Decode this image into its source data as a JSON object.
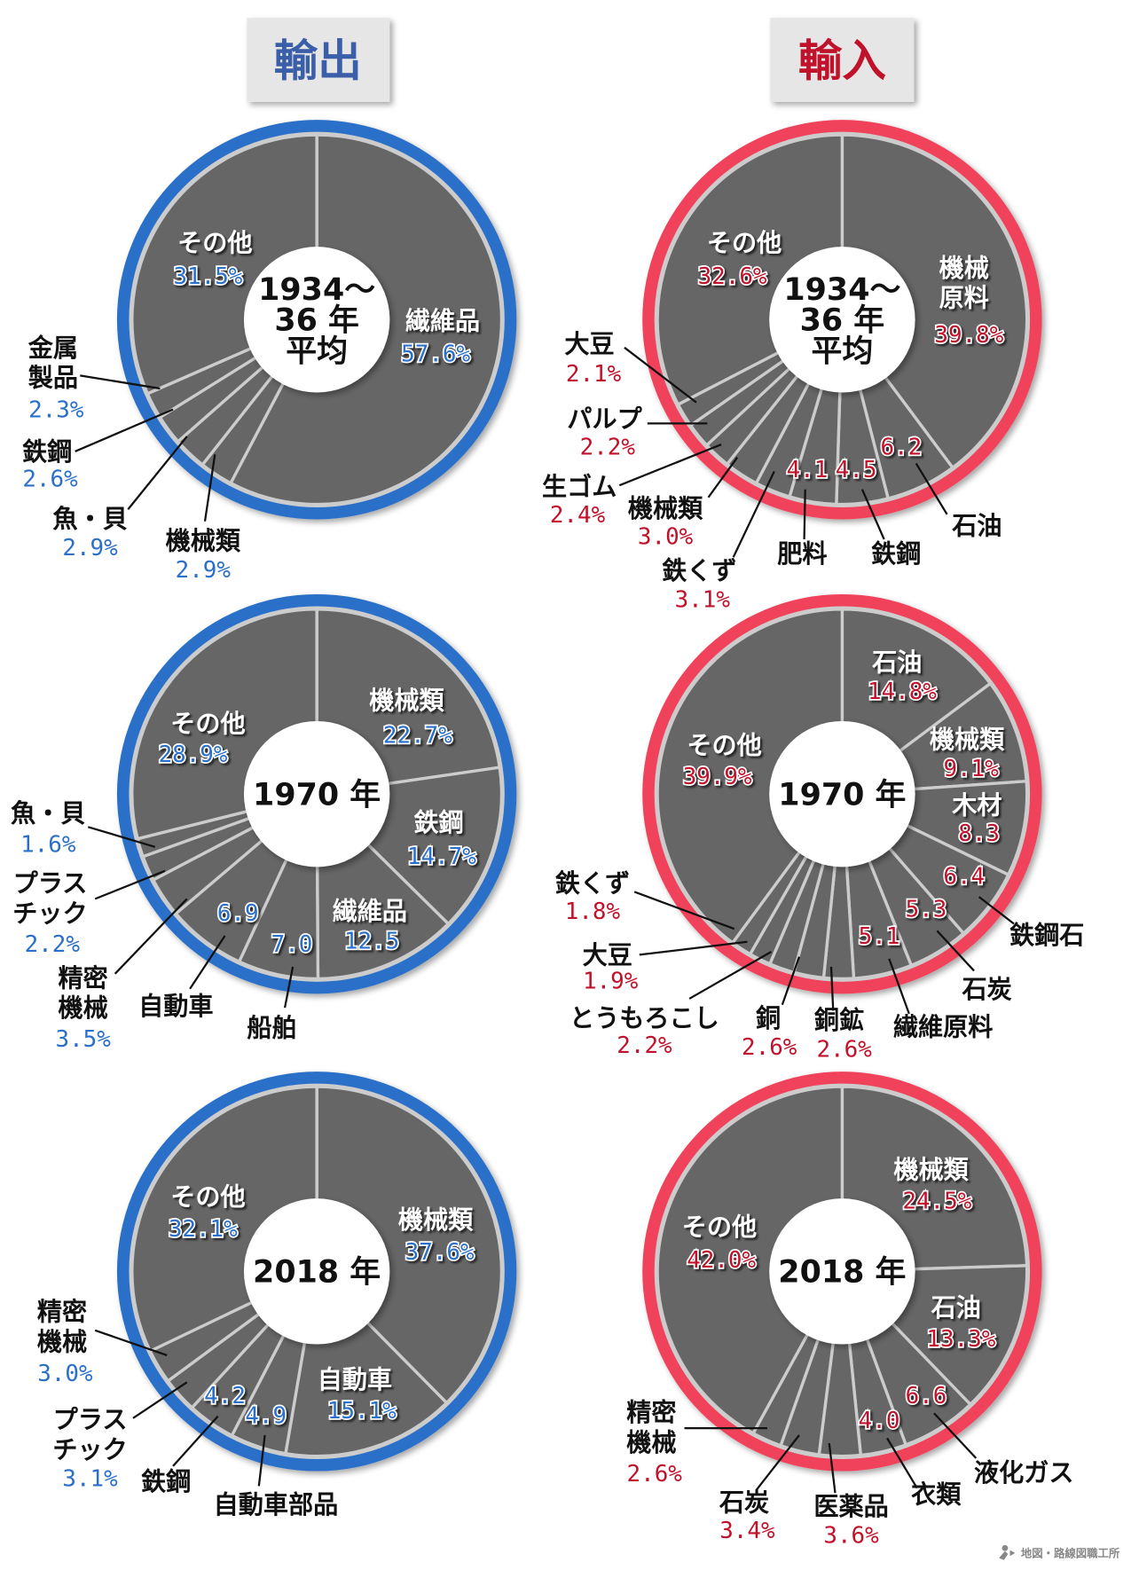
{
  "titles": {
    "export": "輸出",
    "import": "輸入"
  },
  "colors": {
    "export": "#2a6fc9",
    "import": "#f0435a",
    "export_text": "#3a5ea8",
    "import_text": "#c0122a",
    "slice": "#666666",
    "divider": "#cccccc"
  },
  "footer": {
    "credit": "地図・路線図職工所",
    "icon": "logo-icon"
  },
  "chart_data": [
    {
      "type": "pie",
      "panel": "輸出",
      "center_label": [
        "1934～",
        "36 年",
        "平均"
      ],
      "slices": [
        {
          "label": [
            "繊維品"
          ],
          "value": 57.6,
          "value_label": "57.6%"
        },
        {
          "label": [
            "機械類"
          ],
          "value": 2.9,
          "value_label": "2.9%"
        },
        {
          "label": [
            "魚・貝"
          ],
          "value": 2.9,
          "value_label": "2.9%"
        },
        {
          "label": [
            "鉄鋼"
          ],
          "value": 2.6,
          "value_label": "2.6%"
        },
        {
          "label": [
            "金属",
            "製品"
          ],
          "value": 2.3,
          "value_label": "2.3%"
        },
        {
          "label": [
            "その他"
          ],
          "value": 31.5,
          "value_label": "31.5%"
        }
      ]
    },
    {
      "type": "pie",
      "panel": "輸入",
      "center_label": [
        "1934～",
        "36 年",
        "平均"
      ],
      "slices": [
        {
          "label": [
            "機械",
            "原料"
          ],
          "value": 39.8,
          "value_label": "39.8%"
        },
        {
          "label": [
            "石油"
          ],
          "value": 6.2,
          "value_label": "6.2"
        },
        {
          "label": [
            "鉄鋼"
          ],
          "value": 4.5,
          "value_label": "4.5"
        },
        {
          "label": [
            "肥料"
          ],
          "value": 4.1,
          "value_label": "4.1"
        },
        {
          "label": [
            "鉄くず"
          ],
          "value": 3.1,
          "value_label": "3.1%"
        },
        {
          "label": [
            "機械類"
          ],
          "value": 3.0,
          "value_label": "3.0%"
        },
        {
          "label": [
            "生ゴム"
          ],
          "value": 2.4,
          "value_label": "2.4%"
        },
        {
          "label": [
            "パルプ"
          ],
          "value": 2.2,
          "value_label": "2.2%"
        },
        {
          "label": [
            "大豆"
          ],
          "value": 2.1,
          "value_label": "2.1%"
        },
        {
          "label": [
            "その他"
          ],
          "value": 32.6,
          "value_label": "32.6%"
        }
      ]
    },
    {
      "type": "pie",
      "panel": "輸出",
      "center_label": [
        "1970 年"
      ],
      "slices": [
        {
          "label": [
            "機械類"
          ],
          "value": 22.7,
          "value_label": "22.7%"
        },
        {
          "label": [
            "鉄鋼"
          ],
          "value": 14.7,
          "value_label": "14.7%"
        },
        {
          "label": [
            "繊維品"
          ],
          "value": 12.5,
          "value_label": "12.5"
        },
        {
          "label": [
            "船舶"
          ],
          "value": 7.0,
          "value_label": "7.0"
        },
        {
          "label": [
            "自動車"
          ],
          "value": 6.9,
          "value_label": "6.9"
        },
        {
          "label": [
            "精密",
            "機械"
          ],
          "value": 3.5,
          "value_label": "3.5%"
        },
        {
          "label": [
            "プラス",
            "チック"
          ],
          "value": 2.2,
          "value_label": "2.2%"
        },
        {
          "label": [
            "魚・貝"
          ],
          "value": 1.6,
          "value_label": "1.6%"
        },
        {
          "label": [
            "その他"
          ],
          "value": 28.9,
          "value_label": "28.9%"
        }
      ]
    },
    {
      "type": "pie",
      "panel": "輸入",
      "center_label": [
        "1970 年"
      ],
      "slices": [
        {
          "label": [
            "石油"
          ],
          "value": 14.8,
          "value_label": "14.8%"
        },
        {
          "label": [
            "機械類"
          ],
          "value": 9.1,
          "value_label": "9.1%"
        },
        {
          "label": [
            "木材"
          ],
          "value": 8.3,
          "value_label": "8.3"
        },
        {
          "label": [
            "鉄鋼石"
          ],
          "value": 6.4,
          "value_label": "6.4"
        },
        {
          "label": [
            "石炭"
          ],
          "value": 5.3,
          "value_label": "5.3"
        },
        {
          "label": [
            "繊維原料"
          ],
          "value": 5.1,
          "value_label": "5.1"
        },
        {
          "label": [
            "銅鉱"
          ],
          "value": 2.6,
          "value_label": "2.6%"
        },
        {
          "label": [
            "銅"
          ],
          "value": 2.6,
          "value_label": "2.6%"
        },
        {
          "label": [
            "とうもろこし"
          ],
          "value": 2.2,
          "value_label": "2.2%"
        },
        {
          "label": [
            "大豆"
          ],
          "value": 1.9,
          "value_label": "1.9%"
        },
        {
          "label": [
            "鉄くず"
          ],
          "value": 1.8,
          "value_label": "1.8%"
        },
        {
          "label": [
            "その他"
          ],
          "value": 39.9,
          "value_label": "39.9%"
        }
      ]
    },
    {
      "type": "pie",
      "panel": "輸出",
      "center_label": [
        "2018 年"
      ],
      "slices": [
        {
          "label": [
            "機械類"
          ],
          "value": 37.6,
          "value_label": "37.6%"
        },
        {
          "label": [
            "自動車"
          ],
          "value": 15.1,
          "value_label": "15.1%"
        },
        {
          "label": [
            "自動車部品"
          ],
          "value": 4.9,
          "value_label": "4.9"
        },
        {
          "label": [
            "鉄鋼"
          ],
          "value": 4.2,
          "value_label": "4.2"
        },
        {
          "label": [
            "プラス",
            "チック"
          ],
          "value": 3.1,
          "value_label": "3.1%"
        },
        {
          "label": [
            "精密",
            "機械"
          ],
          "value": 3.0,
          "value_label": "3.0%"
        },
        {
          "label": [
            "その他"
          ],
          "value": 32.1,
          "value_label": "32.1%"
        }
      ]
    },
    {
      "type": "pie",
      "panel": "輸入",
      "center_label": [
        "2018 年"
      ],
      "slices": [
        {
          "label": [
            "機械類"
          ],
          "value": 24.5,
          "value_label": "24.5%"
        },
        {
          "label": [
            "石油"
          ],
          "value": 13.3,
          "value_label": "13.3%"
        },
        {
          "label": [
            "液化ガス"
          ],
          "value": 6.6,
          "value_label": "6.6"
        },
        {
          "label": [
            "衣類"
          ],
          "value": 4.0,
          "value_label": "4.0"
        },
        {
          "label": [
            "医薬品"
          ],
          "value": 3.6,
          "value_label": "3.6%"
        },
        {
          "label": [
            "石炭"
          ],
          "value": 3.4,
          "value_label": "3.4%"
        },
        {
          "label": [
            "精密",
            "機械"
          ],
          "value": 2.6,
          "value_label": "2.6%"
        },
        {
          "label": [
            "その他"
          ],
          "value": 42.0,
          "value_label": "42.0%"
        }
      ]
    }
  ]
}
